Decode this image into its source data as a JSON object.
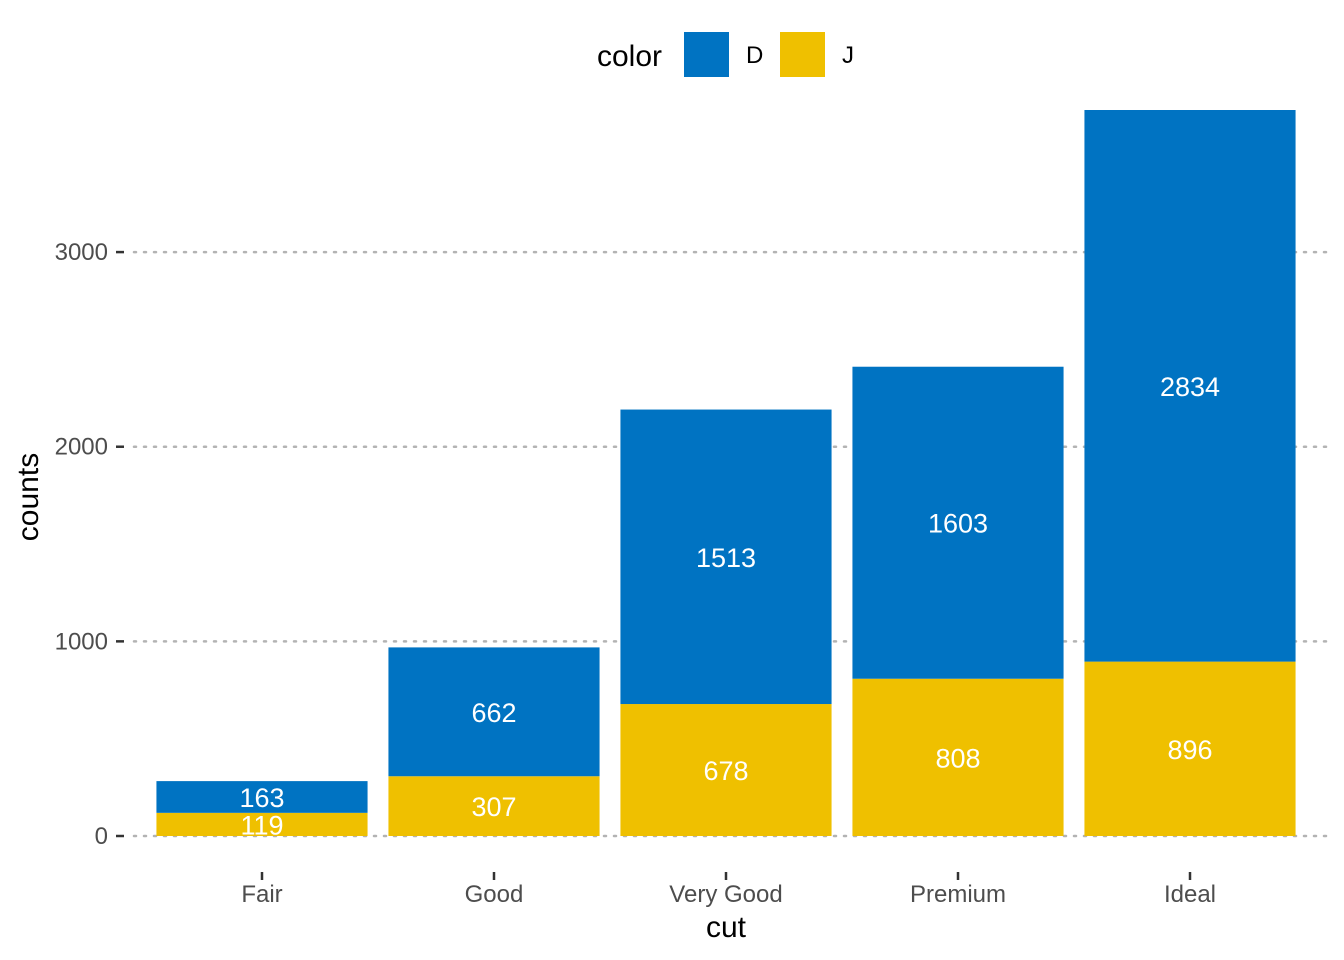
{
  "chart_data": {
    "type": "bar",
    "stacked": true,
    "title": "",
    "xlabel": "cut",
    "ylabel": "counts",
    "categories": [
      "Fair",
      "Good",
      "Very Good",
      "Premium",
      "Ideal"
    ],
    "series": [
      {
        "name": "D",
        "color": "#0073C2",
        "values": [
          163,
          662,
          1513,
          1603,
          2834
        ]
      },
      {
        "name": "J",
        "color": "#EFC000",
        "values": [
          119,
          307,
          678,
          808,
          896
        ]
      }
    ],
    "stack_order_bottom_to_top": [
      "J",
      "D"
    ],
    "yticks": [
      0,
      1000,
      2000,
      3000
    ],
    "ytick_labels": [
      "0",
      "1000",
      "2000",
      "3000"
    ],
    "ylim": [
      0,
      3730
    ],
    "grid": "horizontal-dotted",
    "legend": {
      "title": "color",
      "position": "top",
      "entries": [
        "D",
        "J"
      ]
    }
  }
}
